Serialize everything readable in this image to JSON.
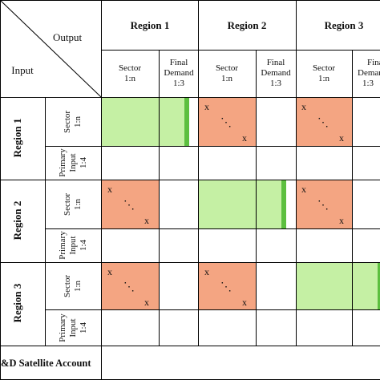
{
  "header": {
    "output_label": "Output",
    "input_label": "Input",
    "regions": [
      "Region 1",
      "Region 2",
      "Region 3"
    ],
    "sector_label": [
      "Sector",
      "1:n"
    ],
    "final_demand_label": [
      "Final",
      "Demand",
      "1:3"
    ]
  },
  "rows": {
    "regions": [
      "Region 1",
      "Region 2",
      "Region 3"
    ],
    "sector_label": [
      "Sector",
      "1:n"
    ],
    "primary_input_label": [
      "Primary",
      "Input",
      "1:4"
    ]
  },
  "footer": {
    "satellite_account": "R&D Satellite Account"
  },
  "cell_marks": {
    "x": "x",
    "dots": "⋱"
  },
  "colors": {
    "domestic_block": "#c5f0a4",
    "domestic_bar": "#5cbf3f",
    "trade_block": "#f4a582",
    "grid": "#000000"
  }
}
